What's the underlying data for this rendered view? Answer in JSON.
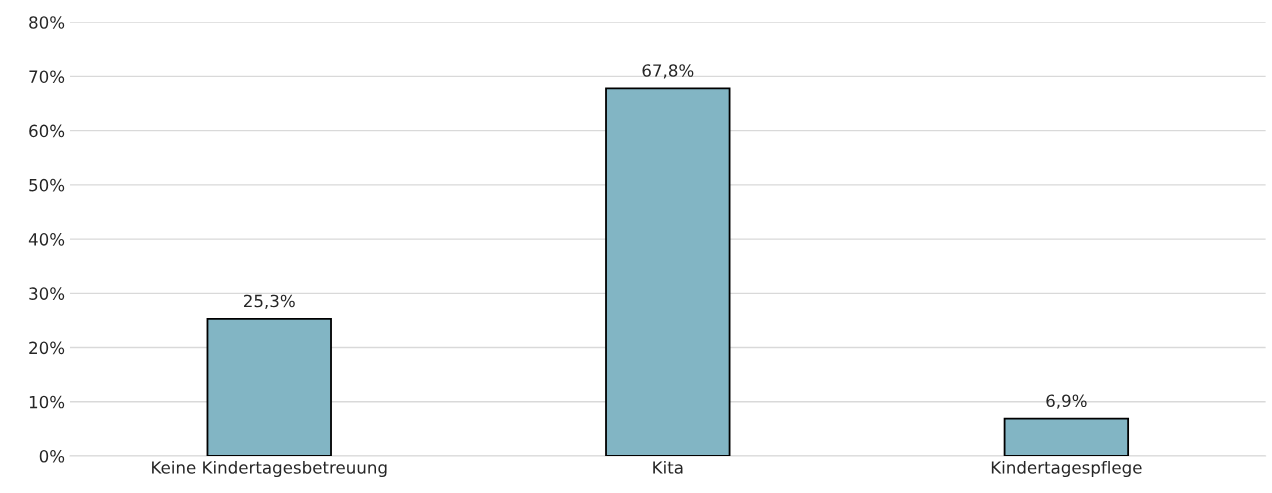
{
  "chart_data": {
    "type": "bar",
    "categories": [
      "Keine Kindertagesbetreuung",
      "Kita",
      "Kindertagespflege"
    ],
    "values": [
      25.3,
      67.8,
      6.9
    ],
    "value_labels": [
      "25,3%",
      "67,8%",
      "6,9%"
    ],
    "color": "#82b5c4",
    "ylim": [
      0,
      80
    ],
    "yticks": [
      {
        "value": 0,
        "label": "0%"
      },
      {
        "value": 10,
        "label": "10%"
      },
      {
        "value": 20,
        "label": "20%"
      },
      {
        "value": 30,
        "label": "30%"
      },
      {
        "value": 40,
        "label": "40%"
      },
      {
        "value": 50,
        "label": "50%"
      },
      {
        "value": 60,
        "label": "60%"
      },
      {
        "value": 70,
        "label": "70%"
      },
      {
        "value": 80,
        "label": "80%"
      }
    ],
    "grid": "y"
  }
}
